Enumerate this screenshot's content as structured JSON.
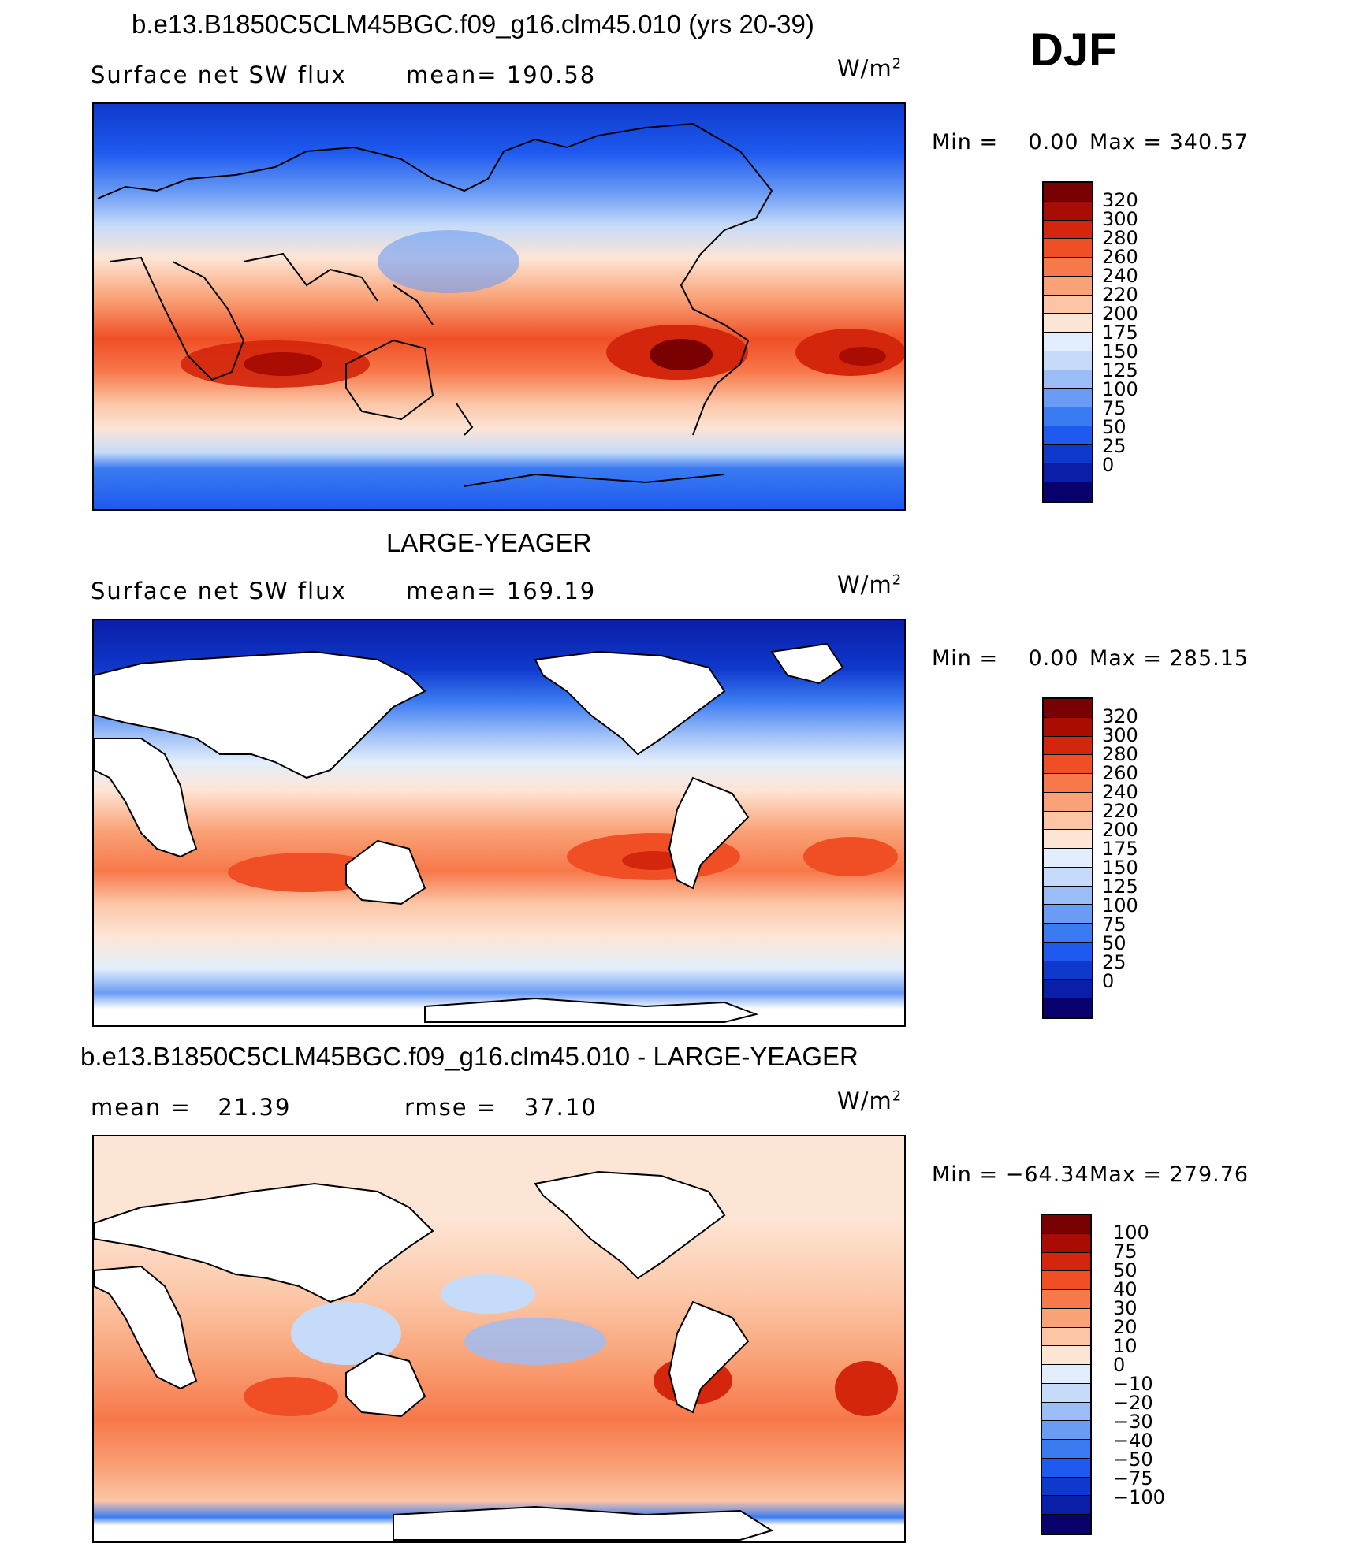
{
  "season": "DJF",
  "palettes": {
    "absolute": [
      "#08006b",
      "#0a1ea8",
      "#0f39cc",
      "#1e5aef",
      "#3b7bf2",
      "#6b9cf5",
      "#9bbdf7",
      "#c5dbf9",
      "#e2eefb",
      "#fde5d5",
      "#fcc6a6",
      "#f9a277",
      "#f7784a",
      "#f04f26",
      "#d3260c",
      "#a80c03",
      "#7a0101"
    ],
    "difference": [
      "#08006b",
      "#0a1ea8",
      "#0f39cc",
      "#1e5aef",
      "#3b7bf2",
      "#6b9cf5",
      "#9bbdf7",
      "#c5dbf9",
      "#e2eefb",
      "#fde5d5",
      "#fcc6a6",
      "#f9a277",
      "#f7784a",
      "#f04f26",
      "#d3260c",
      "#a80c03",
      "#7a0101"
    ]
  },
  "panels": [
    {
      "id": "model",
      "title": "b.e13.B1850C5CLM45BGC.f09_g16.clm45.010 (yrs 20-39)",
      "variable": "Surface net SW flux",
      "stat1": "mean= 190.58",
      "stat2": "",
      "units": "W/m",
      "units_exp": "2",
      "min_label": "Min =",
      "min_value": "0.00",
      "max_label": "Max =",
      "max_value": "340.57",
      "scale": "absolute",
      "levels": [
        "320",
        "300",
        "280",
        "260",
        "240",
        "220",
        "200",
        "175",
        "150",
        "125",
        "100",
        "75",
        "50",
        "25",
        "0"
      ],
      "land_masked": false
    },
    {
      "id": "obs",
      "title": "LARGE-YEAGER",
      "variable": "Surface net SW flux",
      "stat1": "mean= 169.19",
      "stat2": "",
      "units": "W/m",
      "units_exp": "2",
      "min_label": "Min =",
      "min_value": "0.00",
      "max_label": "Max =",
      "max_value": "285.15",
      "scale": "absolute",
      "levels": [
        "320",
        "300",
        "280",
        "260",
        "240",
        "220",
        "200",
        "175",
        "150",
        "125",
        "100",
        "75",
        "50",
        "25",
        "0"
      ],
      "land_masked": true
    },
    {
      "id": "diff",
      "title": "b.e13.B1850C5CLM45BGC.f09_g16.clm45.010 - LARGE-YEAGER",
      "variable": "",
      "stat1": "mean =   21.39",
      "stat2": "rmse =   37.10",
      "units": "W/m",
      "units_exp": "2",
      "min_label": "Min =",
      "min_value": "−64.34",
      "max_label": "Max =",
      "max_value": "279.76",
      "scale": "difference",
      "levels": [
        "100",
        "75",
        "50",
        "40",
        "30",
        "20",
        "10",
        "0",
        "−10",
        "−20",
        "−30",
        "−40",
        "−50",
        "−75",
        "−100"
      ],
      "land_masked": true
    }
  ]
}
